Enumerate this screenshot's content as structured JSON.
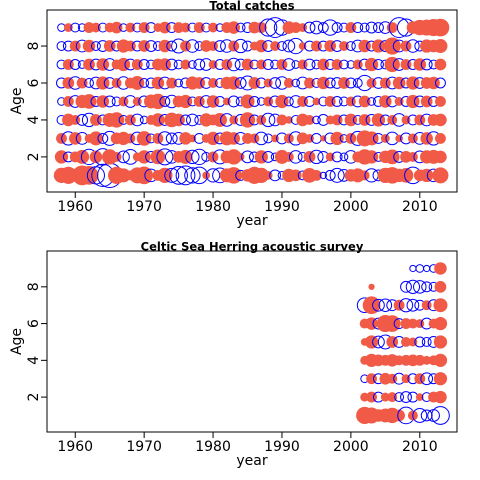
{
  "chart_data": [
    {
      "type": "bubble",
      "title": "Total catches",
      "xlabel": "year",
      "ylabel": "Age",
      "colors": {
        "positive": "#0000ff",
        "negative": "#f05a46"
      },
      "xlim": [
        1955.9,
        2015.4
      ],
      "ylim": [
        0.1,
        9.95
      ],
      "xticks": [
        1960,
        1970,
        1980,
        1990,
        2000,
        2010
      ],
      "yticks": [
        2,
        4,
        6,
        8
      ],
      "x": [
        1958,
        1959,
        1960,
        1961,
        1962,
        1963,
        1964,
        1965,
        1966,
        1967,
        1968,
        1969,
        1970,
        1971,
        1972,
        1973,
        1974,
        1975,
        1976,
        1977,
        1978,
        1979,
        1980,
        1981,
        1982,
        1983,
        1984,
        1985,
        1986,
        1987,
        1988,
        1989,
        1990,
        1991,
        1992,
        1993,
        1994,
        1995,
        1996,
        1997,
        1998,
        1999,
        2000,
        2001,
        2002,
        2003,
        2004,
        2005,
        2006,
        2007,
        2008,
        2009,
        2010,
        2011,
        2012,
        2013
      ],
      "ages": [
        1,
        2,
        3,
        4,
        5,
        6,
        7,
        8,
        9
      ],
      "residuals": [
        [
          -1.2,
          -1.5,
          -0.8,
          -2.0,
          -1.8,
          1.5,
          2.5,
          3.0,
          -1.5,
          -1.0,
          -0.5,
          -1.3,
          -1.6,
          0.8,
          -0.6,
          -1.2,
          1.0,
          1.6,
          1.8,
          1.2,
          1.4,
          -0.3,
          0.9,
          1.1,
          -1.0,
          -1.4,
          0.5,
          -0.8,
          -1.5,
          -1.2,
          -0.4,
          0.6,
          0.3,
          -0.9,
          -0.7,
          0.4,
          -1.1,
          -0.6,
          0.2,
          0.5,
          1.0,
          0.7,
          -0.8,
          -1.0,
          -0.5,
          0.9,
          0.6,
          -1.2,
          -1.4,
          -0.9,
          -1.1,
          1.4,
          -0.7,
          -0.9,
          0.8,
          -1.3
        ],
        [
          -0.9,
          0.5,
          -0.6,
          -1.0,
          1.2,
          -0.8,
          1.4,
          -1.2,
          -0.5,
          0.7,
          1.1,
          -0.4,
          -0.9,
          0.6,
          -1.1,
          1.3,
          0.8,
          -0.7,
          -1.0,
          0.9,
          1.2,
          0.4,
          -0.6,
          1.0,
          -0.8,
          -1.2,
          -0.3,
          0.7,
          0.5,
          -0.9,
          0.6,
          0.3,
          -1.0,
          -0.5,
          0.8,
          0.4,
          -0.7,
          0.9,
          0.6,
          -0.4,
          0.5,
          0.3,
          0.8,
          -0.6,
          -1.2,
          -0.9,
          0.4,
          -0.8,
          -1.1,
          0.6,
          -0.7,
          -0.5,
          0.7,
          -0.9,
          -1.0,
          -0.8
        ],
        [
          -0.6,
          0.9,
          -0.8,
          0.7,
          -0.4,
          -1.0,
          0.5,
          1.0,
          -0.7,
          -0.9,
          -0.5,
          0.8,
          -1.1,
          0.4,
          -0.6,
          0.9,
          0.6,
          0.7,
          -0.8,
          -0.3,
          0.5,
          -0.4,
          -0.9,
          0.6,
          -1.0,
          -0.8,
          0.7,
          -0.6,
          -0.5,
          0.8,
          0.4,
          -0.3,
          0.6,
          -0.5,
          0.9,
          -0.7,
          -0.4,
          0.5,
          -0.2,
          0.6,
          -0.9,
          0.3,
          -0.6,
          1.0,
          -1.3,
          -1.0,
          0.5,
          -0.4,
          0.8,
          -0.3,
          0.6,
          -0.5,
          0.7,
          -0.8,
          0.9,
          -0.6
        ],
        [
          0.4,
          -0.8,
          -0.5,
          0.6,
          0.9,
          -0.7,
          0.5,
          -1.0,
          -1.2,
          0.4,
          -0.6,
          0.7,
          0.3,
          -0.5,
          -0.9,
          0.6,
          -1.1,
          -0.8,
          0.5,
          0.7,
          0.4,
          -0.9,
          -0.6,
          -1.0,
          0.8,
          -0.4,
          0.6,
          -1.2,
          0.5,
          -0.5,
          0.9,
          0.7,
          -0.6,
          -0.3,
          0.4,
          -0.8,
          -0.5,
          0.3,
          0.6,
          -0.4,
          -0.6,
          0.5,
          -0.8,
          0.4,
          -0.7,
          0.6,
          -0.9,
          0.5,
          -0.5,
          0.8,
          -0.4,
          0.5,
          -0.6,
          0.7,
          -0.7,
          -0.8
        ],
        [
          0.3,
          -0.6,
          0.7,
          -0.9,
          -1.1,
          0.5,
          -0.8,
          0.6,
          0.4,
          -0.5,
          0.7,
          -0.4,
          0.6,
          -1.0,
          -1.2,
          0.5,
          0.8,
          -0.7,
          -0.9,
          0.4,
          -0.6,
          0.7,
          -0.8,
          0.5,
          -0.3,
          0.6,
          0.4,
          -1.0,
          0.5,
          0.3,
          -0.5,
          0.6,
          -0.9,
          0.4,
          0.7,
          -0.6,
          0.5,
          -0.3,
          0.4,
          -0.6,
          0.5,
          0.4,
          -0.5,
          0.6,
          -0.7,
          0.3,
          0.5,
          -0.8,
          0.6,
          -0.4,
          0.5,
          -0.9,
          0.6,
          -0.7,
          0.5,
          -0.6
        ],
        [
          0.5,
          -0.7,
          0.8,
          -0.6,
          0.4,
          0.7,
          -0.9,
          0.6,
          -0.5,
          0.8,
          -0.6,
          -1.0,
          0.4,
          0.5,
          -0.8,
          0.7,
          -0.6,
          0.3,
          0.5,
          -0.9,
          -0.7,
          0.6,
          -0.5,
          0.4,
          -0.8,
          -0.9,
          0.6,
          1.0,
          -0.7,
          0.5,
          -0.4,
          0.6,
          0.8,
          -0.5,
          0.3,
          0.7,
          -0.6,
          0.4,
          -0.8,
          0.5,
          0.6,
          -0.7,
          0.5,
          0.4,
          1.2,
          -0.5,
          0.6,
          -0.6,
          0.7,
          -0.8,
          0.5,
          -0.9,
          0.6,
          -0.7,
          -0.8,
          0.5
        ],
        [
          0.4,
          -0.6,
          0.5,
          0.3,
          -0.7,
          0.6,
          -0.8,
          0.7,
          -0.5,
          -0.9,
          0.6,
          -0.6,
          0.5,
          0.4,
          -0.7,
          -0.8,
          0.6,
          0.4,
          -0.5,
          0.3,
          0.6,
          0.7,
          -0.4,
          0.5,
          -0.6,
          0.8,
          0.6,
          -0.7,
          0.4,
          -0.5,
          0.5,
          0.4,
          -0.6,
          0.7,
          0.3,
          -0.5,
          0.6,
          0.4,
          -0.7,
          0.5,
          -0.6,
          0.4,
          0.3,
          -0.5,
          0.6,
          -0.9,
          0.5,
          0.4,
          -1.2,
          0.7,
          -0.6,
          0.5,
          -0.8,
          0.6,
          0.4,
          -0.7
        ],
        [
          0.4,
          0.5,
          -0.6,
          0.7,
          -0.8,
          0.4,
          0.6,
          -0.7,
          0.5,
          -0.9,
          -0.6,
          0.5,
          -0.7,
          0.6,
          0.4,
          -0.8,
          0.5,
          1.0,
          -0.6,
          0.8,
          0.4,
          -0.7,
          -0.5,
          0.6,
          0.8,
          -0.6,
          0.9,
          0.5,
          -0.4,
          -0.8,
          0.6,
          -0.5,
          0.4,
          0.7,
          1.2,
          -0.3,
          0.5,
          -0.6,
          0.5,
          -0.7,
          0.6,
          -0.5,
          0.4,
          0.7,
          -0.8,
          0.5,
          -0.9,
          0.6,
          -1.5,
          0.7,
          -0.6,
          0.8,
          0.5,
          -0.9,
          -0.8,
          -1.0
        ],
        [
          0.3,
          -0.4,
          0.4,
          0.3,
          -0.6,
          -0.5,
          0.4,
          -0.5,
          -0.7,
          0.3,
          -0.5,
          0.4,
          -0.6,
          0.5,
          -0.4,
          -0.7,
          0.5,
          -0.6,
          -0.5,
          0.4,
          -0.6,
          0.4,
          -0.5,
          0.3,
          -0.6,
          -0.8,
          0.4,
          0.5,
          -0.7,
          -0.6,
          1.5,
          2.0,
          1.2,
          -0.8,
          -0.6,
          -0.4,
          0.6,
          0.8,
          0.5,
          1.2,
          0.5,
          0.4,
          -0.6,
          0.5,
          0.4,
          0.6,
          0.5,
          0.7,
          -0.6,
          2.0,
          1.5,
          -0.8,
          -1.2,
          -1.3,
          -1.5,
          -1.6
        ]
      ]
    },
    {
      "type": "bubble",
      "title": "Celtic Sea Herring acoustic survey",
      "xlabel": "year",
      "ylabel": "Age",
      "colors": {
        "positive": "#0000ff",
        "negative": "#f05a46"
      },
      "xlim": [
        1955.9,
        2015.4
      ],
      "ylim": [
        0.1,
        9.95
      ],
      "xticks": [
        1960,
        1970,
        1980,
        1990,
        2000,
        2010
      ],
      "yticks": [
        2,
        4,
        6,
        8
      ],
      "x": [
        2002,
        2003,
        2004,
        2005,
        2006,
        2007,
        2008,
        2009,
        2010,
        2011,
        2012,
        2013
      ],
      "ages": [
        1,
        2,
        3,
        4,
        5,
        6,
        7,
        8,
        9
      ],
      "residuals": [
        [
          -1.5,
          -1.3,
          -0.8,
          -1.0,
          -1.2,
          -0.7,
          1.4,
          -0.5,
          1.0,
          0.6,
          0.7,
          1.6
        ],
        [
          -0.4,
          -0.6,
          0.5,
          -0.4,
          -0.5,
          0.4,
          0.6,
          0.5,
          -0.3,
          0.4,
          -0.6,
          -0.8
        ],
        [
          0.3,
          -0.6,
          0.5,
          -0.7,
          -0.5,
          0.6,
          -0.4,
          0.5,
          -0.6,
          0.7,
          0.5,
          -0.9
        ],
        [
          -0.4,
          -0.9,
          -0.7,
          -0.6,
          -0.8,
          -0.5,
          -0.6,
          -0.7,
          -0.6,
          -0.4,
          -0.5,
          -0.9
        ],
        [
          -0.3,
          -0.9,
          0.7,
          1.0,
          -0.7,
          0.6,
          -0.5,
          -0.4,
          0.5,
          0.4,
          0.6,
          -0.9
        ],
        [
          -0.5,
          -0.8,
          0.6,
          -1.5,
          -1.4,
          0.5,
          -0.6,
          -0.5,
          -0.4,
          0.6,
          -0.5,
          -0.9
        ],
        [
          1.1,
          -1.6,
          0.7,
          0.8,
          0.6,
          -0.6,
          0.9,
          0.7,
          0.5,
          -0.5,
          0.6,
          -1.0
        ],
        [
          null,
          -0.2,
          null,
          null,
          null,
          null,
          0.6,
          0.9,
          0.8,
          0.5,
          0.4,
          -0.7
        ],
        [
          null,
          null,
          null,
          null,
          null,
          null,
          null,
          0.2,
          0.3,
          0.2,
          0.3,
          -0.8
        ]
      ]
    }
  ]
}
